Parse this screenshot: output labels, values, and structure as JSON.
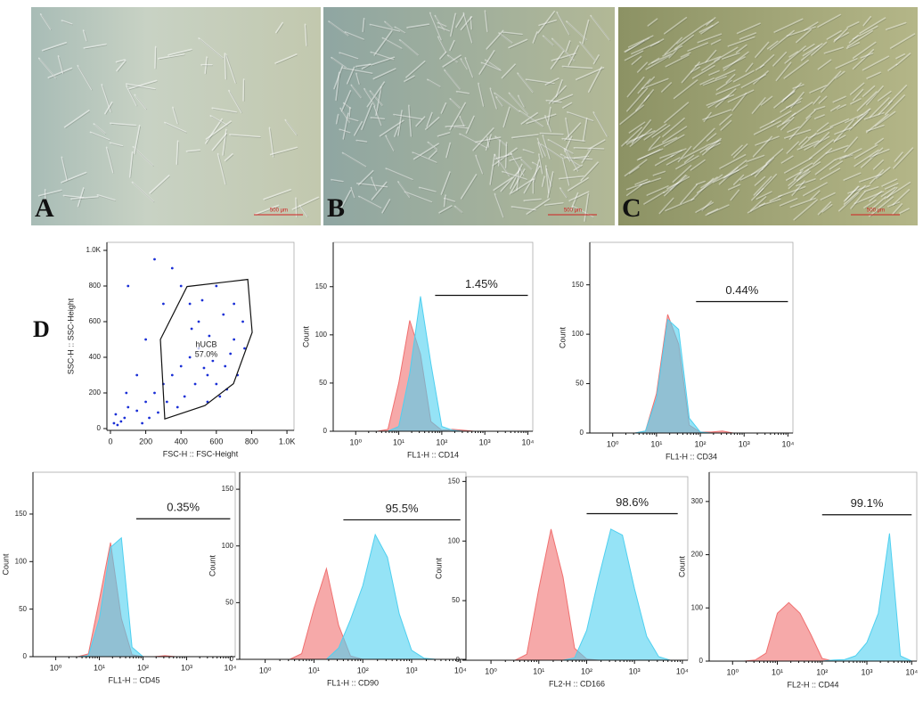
{
  "panels": [
    {
      "label": "A",
      "scale_bar": "500 μm"
    },
    {
      "label": "B",
      "scale_bar": "500 μm"
    },
    {
      "label": "C",
      "scale_bar": "500 μm"
    }
  ],
  "panel_d_label": "D",
  "chart_data": [
    {
      "type": "scatter",
      "xlabel": "FSC-H :: FSC-Height",
      "ylabel": "SSC-H :: SSC-Height",
      "color": "#1a2fd6",
      "xlim": [
        -20,
        1040
      ],
      "ylim": [
        -10,
        1045
      ],
      "xticks": [
        0,
        200,
        400,
        600,
        800,
        {
          "value": 1000,
          "label": "1.0K"
        }
      ],
      "yticks": [
        0,
        200,
        400,
        600,
        800,
        {
          "value": 1000,
          "label": "1.0K"
        }
      ],
      "x": [
        20,
        40,
        60,
        80,
        30,
        100,
        150,
        200,
        250,
        300,
        350,
        400,
        450,
        500,
        550,
        600,
        650,
        700,
        750,
        500,
        450,
        400,
        600,
        350,
        300,
        200,
        150,
        100,
        250,
        550,
        620,
        680,
        720,
        480,
        420,
        380,
        320,
        270,
        220,
        180,
        560,
        640,
        520,
        460,
        700,
        760,
        580,
        530,
        660,
        90
      ],
      "y": [
        30,
        20,
        40,
        60,
        80,
        120,
        100,
        150,
        200,
        250,
        300,
        350,
        400,
        450,
        300,
        250,
        350,
        500,
        600,
        600,
        700,
        800,
        800,
        900,
        700,
        500,
        300,
        800,
        950,
        150,
        180,
        420,
        300,
        250,
        180,
        120,
        150,
        90,
        60,
        30,
        520,
        640,
        720,
        560,
        700,
        450,
        380,
        340,
        220,
        200
      ],
      "gate": {
        "x": [
          283,
          434,
          778,
          803,
          697,
          535,
          308,
          283
        ],
        "y": [
          500,
          797,
          837,
          540,
          252,
          129,
          54,
          500
        ],
        "label": "hUCB",
        "value_label": "57.0%"
      }
    },
    {
      "type": "area",
      "xlabel": "FL1-H :: CD14",
      "ylabel": "Count",
      "log_x": true,
      "xlim": [
        0.3,
        13000
      ],
      "ylim": [
        0,
        196
      ],
      "xticks": [
        {
          "value": 1,
          "label": "10⁰"
        },
        {
          "value": 10,
          "label": "10¹"
        },
        {
          "value": 100,
          "label": "10²"
        },
        {
          "value": 1000,
          "label": "10³"
        },
        {
          "value": 10000,
          "label": "10⁴"
        }
      ],
      "yticks": [
        0,
        50,
        100,
        150
      ],
      "x": [
        1,
        1.8,
        3.2,
        5.6,
        10,
        18,
        32,
        56,
        100,
        180,
        320,
        560,
        1000,
        1800,
        3200,
        5600,
        10000
      ],
      "series": [
        {
          "color": "#f07070",
          "values": [
            0,
            0,
            0,
            2,
            50,
            115,
            80,
            10,
            1,
            2,
            1,
            0,
            0,
            0,
            0,
            0,
            0
          ]
        },
        {
          "color": "#4fd0f0",
          "values": [
            0,
            0,
            0,
            0,
            5,
            60,
            140,
            70,
            5,
            1,
            0,
            0,
            0,
            0,
            0,
            0,
            0
          ]
        }
      ],
      "annotations": [
        {
          "text": "1.45%",
          "x": [
            70,
            10000
          ],
          "y": 141
        }
      ]
    },
    {
      "type": "area",
      "xlabel": "FL1-H :: CD34",
      "ylabel": "Count",
      "log_x": true,
      "xlim": [
        0.3,
        13000
      ],
      "ylim": [
        0,
        193
      ],
      "xticks": [
        {
          "value": 1,
          "label": "10⁰"
        },
        {
          "value": 10,
          "label": "10¹"
        },
        {
          "value": 100,
          "label": "10²"
        },
        {
          "value": 1000,
          "label": "10³"
        },
        {
          "value": 10000,
          "label": "10⁴"
        }
      ],
      "yticks": [
        0,
        50,
        100,
        150
      ],
      "x": [
        1,
        1.8,
        3.2,
        5.6,
        10,
        18,
        32,
        56,
        100,
        180,
        320,
        560,
        1000,
        1800,
        3200,
        5600,
        10000
      ],
      "series": [
        {
          "color": "#f07070",
          "values": [
            0,
            0,
            0,
            2,
            40,
            120,
            90,
            8,
            1,
            1,
            2,
            0,
            0,
            0,
            0,
            0,
            0
          ]
        },
        {
          "color": "#4fd0f0",
          "values": [
            0,
            0,
            0,
            2,
            35,
            115,
            105,
            15,
            1,
            0,
            0,
            0,
            0,
            0,
            0,
            0,
            0
          ]
        }
      ],
      "annotations": [
        {
          "text": "0.44%",
          "x": [
            80,
            10000
          ],
          "y": 133
        }
      ]
    },
    {
      "type": "area",
      "xlabel": "FL1-H :: CD45",
      "ylabel": "Count",
      "log_x": true,
      "xlim": [
        0.3,
        13000
      ],
      "ylim": [
        0,
        194
      ],
      "xticks": [
        {
          "value": 1,
          "label": "10⁰"
        },
        {
          "value": 10,
          "label": "10¹"
        },
        {
          "value": 100,
          "label": "10²"
        },
        {
          "value": 1000,
          "label": "10³"
        },
        {
          "value": 10000,
          "label": "10⁴"
        }
      ],
      "yticks": [
        0,
        50,
        100,
        150
      ],
      "x": [
        1,
        1.8,
        3.2,
        5.6,
        10,
        18,
        32,
        56,
        100,
        180,
        320,
        560,
        1000,
        1800,
        3200,
        5600,
        10000
      ],
      "series": [
        {
          "color": "#f07070",
          "values": [
            0,
            0,
            0,
            3,
            60,
            120,
            40,
            2,
            0,
            0,
            1,
            0,
            0,
            0,
            0,
            0,
            0
          ]
        },
        {
          "color": "#4fd0f0",
          "values": [
            0,
            0,
            0,
            1,
            40,
            115,
            125,
            10,
            0,
            0,
            0,
            0,
            0,
            0,
            0,
            0,
            0
          ]
        }
      ],
      "annotations": [
        {
          "text": "0.35%",
          "x": [
            70,
            10000
          ],
          "y": 145
        }
      ]
    },
    {
      "type": "area",
      "xlabel": "FL1-H :: CD90",
      "ylabel": "Count",
      "log_x": true,
      "xlim": [
        0.3,
        13000
      ],
      "ylim": [
        0,
        165
      ],
      "xticks": [
        {
          "value": 1,
          "label": "10⁰"
        },
        {
          "value": 10,
          "label": "10¹"
        },
        {
          "value": 100,
          "label": "10²"
        },
        {
          "value": 1000,
          "label": "10³"
        },
        {
          "value": 10000,
          "label": "10⁴"
        }
      ],
      "yticks": [
        0,
        50,
        100,
        150
      ],
      "x": [
        1,
        1.8,
        3.2,
        5.6,
        10,
        18,
        32,
        56,
        100,
        180,
        320,
        560,
        1000,
        1800,
        3200,
        5600,
        10000
      ],
      "series": [
        {
          "color": "#f07070",
          "values": [
            0,
            0,
            0,
            5,
            45,
            80,
            30,
            3,
            0,
            0,
            0,
            0,
            0,
            0,
            0,
            0,
            0
          ]
        },
        {
          "color": "#4fd0f0",
          "values": [
            0,
            0,
            0,
            0,
            0,
            0,
            10,
            35,
            65,
            110,
            90,
            40,
            8,
            1,
            0,
            0,
            0
          ]
        }
      ],
      "annotations": [
        {
          "text": "95.5%",
          "x": [
            40,
            10000
          ],
          "y": 123
        }
      ]
    },
    {
      "type": "area",
      "xlabel": "FL2-H :: CD166",
      "ylabel": "Count",
      "log_x": true,
      "xlim": [
        0.3,
        13000
      ],
      "ylim": [
        0,
        154
      ],
      "xticks": [
        {
          "value": 1,
          "label": "10⁰"
        },
        {
          "value": 10,
          "label": "10¹"
        },
        {
          "value": 100,
          "label": "10²"
        },
        {
          "value": 1000,
          "label": "10³"
        },
        {
          "value": 10000,
          "label": "10⁴"
        }
      ],
      "yticks": [
        0,
        50,
        100,
        150
      ],
      "x": [
        1,
        1.8,
        3.2,
        5.6,
        10,
        18,
        32,
        56,
        100,
        180,
        320,
        560,
        1000,
        1800,
        3200,
        5600,
        10000
      ],
      "series": [
        {
          "color": "#f07070",
          "values": [
            0,
            0,
            0,
            5,
            60,
            110,
            70,
            10,
            1,
            0,
            0,
            0,
            0,
            0,
            0,
            0,
            0
          ]
        },
        {
          "color": "#4fd0f0",
          "values": [
            0,
            0,
            0,
            0,
            0,
            0,
            0,
            2,
            25,
            70,
            110,
            105,
            60,
            20,
            3,
            0,
            0
          ]
        }
      ],
      "annotations": [
        {
          "text": "98.6%",
          "x": [
            100,
            8000
          ],
          "y": 123
        }
      ]
    },
    {
      "type": "area",
      "xlabel": "FL2-H :: CD44",
      "ylabel": "Count",
      "log_x": true,
      "xlim": [
        0.3,
        13000
      ],
      "ylim": [
        0,
        355
      ],
      "xticks": [
        {
          "value": 1,
          "label": "10⁰"
        },
        {
          "value": 10,
          "label": "10¹"
        },
        {
          "value": 100,
          "label": "10²"
        },
        {
          "value": 1000,
          "label": "10³"
        },
        {
          "value": 10000,
          "label": "10⁴"
        }
      ],
      "yticks": [
        0,
        100,
        200,
        300
      ],
      "x": [
        1,
        1.8,
        3.2,
        5.6,
        10,
        18,
        32,
        56,
        100,
        180,
        320,
        560,
        1000,
        1800,
        3200,
        5600,
        10000
      ],
      "series": [
        {
          "color": "#f07070",
          "values": [
            0,
            0,
            2,
            15,
            90,
            110,
            90,
            50,
            5,
            0,
            0,
            0,
            0,
            0,
            0,
            0,
            0
          ]
        },
        {
          "color": "#4fd0f0",
          "values": [
            0,
            0,
            0,
            0,
            0,
            0,
            0,
            0,
            0,
            2,
            3,
            10,
            35,
            90,
            240,
            10,
            0
          ]
        }
      ],
      "annotations": [
        {
          "text": "99.1%",
          "x": [
            100,
            10000
          ],
          "y": 275
        }
      ]
    }
  ]
}
